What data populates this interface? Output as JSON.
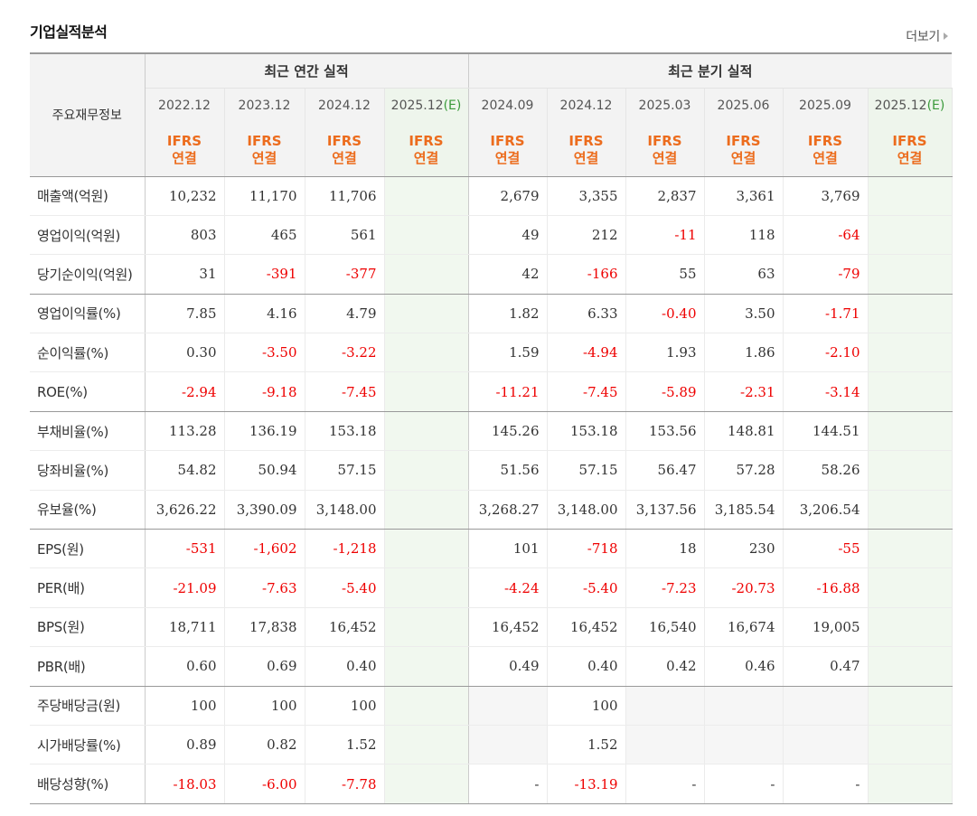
{
  "title": "기업실적분석",
  "more_label": "더보기",
  "corner_label": "주요재무정보",
  "groups": {
    "annual": "최근 연간 실적",
    "quarter": "최근 분기 실적"
  },
  "periods": [
    {
      "label": "2022.12",
      "est": ""
    },
    {
      "label": "2023.12",
      "est": ""
    },
    {
      "label": "2024.12",
      "est": ""
    },
    {
      "label": "2025.12",
      "est": "(E)"
    },
    {
      "label": "2024.09",
      "est": ""
    },
    {
      "label": "2024.12",
      "est": ""
    },
    {
      "label": "2025.03",
      "est": ""
    },
    {
      "label": "2025.06",
      "est": ""
    },
    {
      "label": "2025.09",
      "est": ""
    },
    {
      "label": "2025.12",
      "est": "(E)"
    }
  ],
  "accounting": {
    "line1": "IFRS",
    "line2": "연결"
  },
  "rows": [
    {
      "label": "매출액(억원)",
      "values": [
        "10,232",
        "11,170",
        "11,706",
        "",
        "2,679",
        "3,355",
        "2,837",
        "3,361",
        "3,769",
        ""
      ]
    },
    {
      "label": "영업이익(억원)",
      "values": [
        "803",
        "465",
        "561",
        "",
        "49",
        "212",
        "-11",
        "118",
        "-64",
        ""
      ]
    },
    {
      "label": "당기순이익(억원)",
      "values": [
        "31",
        "-391",
        "-377",
        "",
        "42",
        "-166",
        "55",
        "63",
        "-79",
        ""
      ]
    },
    {
      "label": "영업이익률(%)",
      "values": [
        "7.85",
        "4.16",
        "4.79",
        "",
        "1.82",
        "6.33",
        "-0.40",
        "3.50",
        "-1.71",
        ""
      ]
    },
    {
      "label": "순이익률(%)",
      "values": [
        "0.30",
        "-3.50",
        "-3.22",
        "",
        "1.59",
        "-4.94",
        "1.93",
        "1.86",
        "-2.10",
        ""
      ]
    },
    {
      "label": "ROE(%)",
      "values": [
        "-2.94",
        "-9.18",
        "-7.45",
        "",
        "-11.21",
        "-7.45",
        "-5.89",
        "-2.31",
        "-3.14",
        ""
      ]
    },
    {
      "label": "부채비율(%)",
      "values": [
        "113.28",
        "136.19",
        "153.18",
        "",
        "145.26",
        "153.18",
        "153.56",
        "148.81",
        "144.51",
        ""
      ]
    },
    {
      "label": "당좌비율(%)",
      "values": [
        "54.82",
        "50.94",
        "57.15",
        "",
        "51.56",
        "57.15",
        "56.47",
        "57.28",
        "58.26",
        ""
      ]
    },
    {
      "label": "유보율(%)",
      "values": [
        "3,626.22",
        "3,390.09",
        "3,148.00",
        "",
        "3,268.27",
        "3,148.00",
        "3,137.56",
        "3,185.54",
        "3,206.54",
        ""
      ]
    },
    {
      "label": "EPS(원)",
      "values": [
        "-531",
        "-1,602",
        "-1,218",
        "",
        "101",
        "-718",
        "18",
        "230",
        "-55",
        ""
      ]
    },
    {
      "label": "PER(배)",
      "values": [
        "-21.09",
        "-7.63",
        "-5.40",
        "",
        "-4.24",
        "-5.40",
        "-7.23",
        "-20.73",
        "-16.88",
        ""
      ]
    },
    {
      "label": "BPS(원)",
      "values": [
        "18,711",
        "17,838",
        "16,452",
        "",
        "16,452",
        "16,452",
        "16,540",
        "16,674",
        "19,005",
        ""
      ]
    },
    {
      "label": "PBR(배)",
      "values": [
        "0.60",
        "0.69",
        "0.40",
        "",
        "0.49",
        "0.40",
        "0.42",
        "0.46",
        "0.47",
        ""
      ]
    },
    {
      "label": "주당배당금(원)",
      "values": [
        "100",
        "100",
        "100",
        "",
        "",
        "100",
        "",
        "",
        "",
        ""
      ]
    },
    {
      "label": "시가배당률(%)",
      "values": [
        "0.89",
        "0.82",
        "1.52",
        "",
        "",
        "1.52",
        "",
        "",
        "",
        ""
      ]
    },
    {
      "label": "배당성향(%)",
      "values": [
        "-18.03",
        "-6.00",
        "-7.78",
        "",
        "-",
        "-13.19",
        "-",
        "-",
        "-",
        ""
      ]
    }
  ],
  "colors": {
    "negative": "#e00000",
    "ifrs": "#ec6c1d",
    "estimate": "#3a9a3a"
  }
}
